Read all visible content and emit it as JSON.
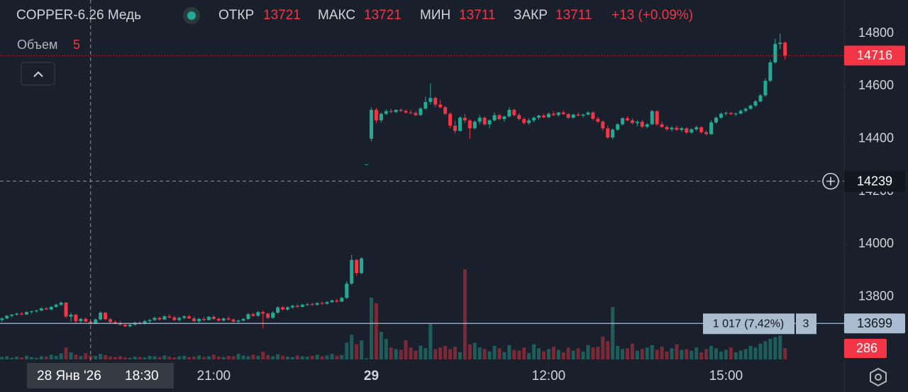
{
  "chart_data": {
    "type": "candlestick",
    "symbol": "COPPER-6.26 Медь",
    "legend": {
      "open_label": "ОТКР",
      "open": 13721,
      "high_label": "МАКС",
      "high": 13721,
      "low_label": "МИН",
      "low": 13711,
      "close_label": "ЗАКР",
      "close": 13711,
      "change": "+13 (+0.09%)",
      "volume_label": "Объем",
      "volume": 5
    },
    "up_color": "#22ab94",
    "down_color": "#f23645",
    "ylim": [
      13549,
      14927
    ],
    "yticks": [
      13800,
      14000,
      14200,
      14400,
      14600,
      14800
    ],
    "xlim": [
      -0.4,
      171
    ],
    "xticks": [
      {
        "value": 43,
        "label": "21:00"
      },
      {
        "value": 75,
        "label": "29"
      },
      {
        "value": 111,
        "label": "12:00"
      },
      {
        "value": 147,
        "label": "15:00"
      }
    ],
    "volume_ylim": [
      0,
      9075
    ],
    "grid": false,
    "ohlc": [
      [
        13712,
        13722,
        13705,
        13718
      ],
      [
        13718,
        13730,
        13715,
        13728
      ],
      [
        13728,
        13735,
        13722,
        13732
      ],
      [
        13732,
        13740,
        13728,
        13736
      ],
      [
        13736,
        13742,
        13730,
        13733
      ],
      [
        13733,
        13745,
        13731,
        13742
      ],
      [
        13742,
        13748,
        13736,
        13745
      ],
      [
        13745,
        13752,
        13740,
        13748
      ],
      [
        13748,
        13760,
        13745,
        13756
      ],
      [
        13756,
        13762,
        13750,
        13752
      ],
      [
        13752,
        13765,
        13748,
        13762
      ],
      [
        13762,
        13775,
        13758,
        13770
      ],
      [
        13770,
        13782,
        13765,
        13778
      ],
      [
        13778,
        13780,
        13720,
        13725
      ],
      [
        13725,
        13740,
        13705,
        13732
      ],
      [
        13732,
        13736,
        13700,
        13708
      ],
      [
        13708,
        13720,
        13700,
        13716
      ],
      [
        13716,
        13722,
        13704,
        13706
      ],
      [
        13706,
        13712,
        13695,
        13700
      ],
      [
        13700,
        13718,
        13696,
        13714
      ],
      [
        13714,
        13745,
        13710,
        13740
      ],
      [
        13740,
        13742,
        13712,
        13715
      ],
      [
        13715,
        13720,
        13700,
        13704
      ],
      [
        13704,
        13710,
        13696,
        13700
      ],
      [
        13700,
        13708,
        13690,
        13694
      ],
      [
        13694,
        13700,
        13685,
        13688
      ],
      [
        13688,
        13698,
        13684,
        13694
      ],
      [
        13694,
        13706,
        13690,
        13702
      ],
      [
        13702,
        13708,
        13694,
        13698
      ],
      [
        13698,
        13712,
        13695,
        13708
      ],
      [
        13708,
        13716,
        13700,
        13712
      ],
      [
        13712,
        13725,
        13708,
        13720
      ],
      [
        13720,
        13724,
        13710,
        13714
      ],
      [
        13714,
        13730,
        13712,
        13726
      ],
      [
        13726,
        13734,
        13718,
        13722
      ],
      [
        13722,
        13728,
        13708,
        13712
      ],
      [
        13712,
        13724,
        13706,
        13720
      ],
      [
        13720,
        13730,
        13714,
        13726
      ],
      [
        13726,
        13732,
        13716,
        13718
      ],
      [
        13718,
        13726,
        13704,
        13708
      ],
      [
        13708,
        13720,
        13702,
        13716
      ],
      [
        13716,
        13724,
        13708,
        13712
      ],
      [
        13712,
        13728,
        13710,
        13724
      ],
      [
        13724,
        13730,
        13712,
        13716
      ],
      [
        13716,
        13722,
        13706,
        13710
      ],
      [
        13710,
        13722,
        13706,
        13718
      ],
      [
        13718,
        13726,
        13710,
        13714
      ],
      [
        13714,
        13718,
        13702,
        13706
      ],
      [
        13706,
        13714,
        13700,
        13710
      ],
      [
        13710,
        13720,
        13706,
        13716
      ],
      [
        13716,
        13738,
        13712,
        13734
      ],
      [
        13734,
        13740,
        13724,
        13728
      ],
      [
        13728,
        13746,
        13724,
        13742
      ],
      [
        13742,
        13748,
        13680,
        13736
      ],
      [
        13736,
        13740,
        13716,
        13720
      ],
      [
        13720,
        13745,
        13718,
        13740
      ],
      [
        13740,
        13765,
        13736,
        13760
      ],
      [
        13760,
        13766,
        13748,
        13752
      ],
      [
        13752,
        13764,
        13748,
        13760
      ],
      [
        13760,
        13770,
        13754,
        13766
      ],
      [
        13766,
        13772,
        13758,
        13762
      ],
      [
        13762,
        13774,
        13760,
        13770
      ],
      [
        13770,
        13776,
        13764,
        13772
      ],
      [
        13772,
        13778,
        13766,
        13770
      ],
      [
        13770,
        13780,
        13766,
        13776
      ],
      [
        13776,
        13782,
        13770,
        13774
      ],
      [
        13774,
        13784,
        13770,
        13780
      ],
      [
        13780,
        13790,
        13776,
        13786
      ],
      [
        13786,
        13792,
        13778,
        13782
      ],
      [
        13782,
        13800,
        13780,
        13796
      ],
      [
        13796,
        13860,
        13792,
        13850
      ],
      [
        13850,
        13960,
        13846,
        13940
      ],
      [
        13940,
        13944,
        13880,
        13890
      ],
      [
        13890,
        13950,
        13886,
        13946
      ],
      [
        14303,
        14303,
        14303,
        14303
      ],
      [
        14400,
        14520,
        14390,
        14510
      ],
      [
        14510,
        14518,
        14460,
        14470
      ],
      [
        14470,
        14500,
        14462,
        14495
      ],
      [
        14495,
        14512,
        14490,
        14505
      ],
      [
        14505,
        14514,
        14498,
        14502
      ],
      [
        14502,
        14512,
        14498,
        14510
      ],
      [
        14510,
        14516,
        14502,
        14506
      ],
      [
        14506,
        14512,
        14495,
        14500
      ],
      [
        14500,
        14510,
        14494,
        14498
      ],
      [
        14498,
        14505,
        14485,
        14490
      ],
      [
        14490,
        14520,
        14488,
        14515
      ],
      [
        14515,
        14560,
        14510,
        14540
      ],
      [
        14540,
        14610,
        14530,
        14555
      ],
      [
        14555,
        14560,
        14520,
        14530
      ],
      [
        14530,
        14548,
        14515,
        14520
      ],
      [
        14520,
        14525,
        14490,
        14495
      ],
      [
        14495,
        14500,
        14440,
        14450
      ],
      [
        14450,
        14470,
        14420,
        14430
      ],
      [
        14430,
        14485,
        14428,
        14480
      ],
      [
        14480,
        14495,
        14460,
        14470
      ],
      [
        14470,
        14475,
        14400,
        14440
      ],
      [
        14440,
        14470,
        14435,
        14465
      ],
      [
        14465,
        14490,
        14455,
        14480
      ],
      [
        14480,
        14485,
        14450,
        14455
      ],
      [
        14455,
        14475,
        14440,
        14470
      ],
      [
        14470,
        14500,
        14465,
        14490
      ],
      [
        14490,
        14495,
        14470,
        14475
      ],
      [
        14475,
        14488,
        14465,
        14485
      ],
      [
        14485,
        14520,
        14480,
        14510
      ],
      [
        14510,
        14515,
        14485,
        14490
      ],
      [
        14490,
        14498,
        14470,
        14475
      ],
      [
        14475,
        14482,
        14455,
        14460
      ],
      [
        14460,
        14478,
        14452,
        14470
      ],
      [
        14470,
        14485,
        14462,
        14480
      ],
      [
        14480,
        14492,
        14472,
        14488
      ],
      [
        14488,
        14495,
        14478,
        14482
      ],
      [
        14482,
        14500,
        14478,
        14495
      ],
      [
        14495,
        14505,
        14486,
        14490
      ],
      [
        14490,
        14502,
        14484,
        14500
      ],
      [
        14500,
        14508,
        14490,
        14494
      ],
      [
        14494,
        14498,
        14475,
        14480
      ],
      [
        14480,
        14496,
        14476,
        14492
      ],
      [
        14492,
        14500,
        14485,
        14488
      ],
      [
        14488,
        14495,
        14480,
        14492
      ],
      [
        14492,
        14506,
        14488,
        14500
      ],
      [
        14500,
        14504,
        14470,
        14476
      ],
      [
        14476,
        14484,
        14460,
        14465
      ],
      [
        14465,
        14470,
        14430,
        14440
      ],
      [
        14440,
        14450,
        14400,
        14405
      ],
      [
        14405,
        14440,
        14398,
        14435
      ],
      [
        14435,
        14460,
        14430,
        14455
      ],
      [
        14455,
        14482,
        14450,
        14478
      ],
      [
        14478,
        14486,
        14466,
        14470
      ],
      [
        14470,
        14478,
        14455,
        14460
      ],
      [
        14460,
        14470,
        14448,
        14465
      ],
      [
        14465,
        14472,
        14440,
        14446
      ],
      [
        14446,
        14460,
        14440,
        14455
      ],
      [
        14455,
        14510,
        14452,
        14505
      ],
      [
        14505,
        14508,
        14450,
        14455
      ],
      [
        14455,
        14465,
        14440,
        14445
      ],
      [
        14445,
        14452,
        14430,
        14436
      ],
      [
        14436,
        14448,
        14428,
        14442
      ],
      [
        14442,
        14450,
        14430,
        14434
      ],
      [
        14434,
        14446,
        14426,
        14440
      ],
      [
        14440,
        14444,
        14418,
        14424
      ],
      [
        14424,
        14440,
        14420,
        14436
      ],
      [
        14436,
        14450,
        14430,
        14444
      ],
      [
        14444,
        14448,
        14420,
        14425
      ],
      [
        14425,
        14432,
        14412,
        14418
      ],
      [
        14418,
        14470,
        14415,
        14462
      ],
      [
        14462,
        14485,
        14458,
        14480
      ],
      [
        14480,
        14500,
        14476,
        14495
      ],
      [
        14495,
        14504,
        14488,
        14498
      ],
      [
        14498,
        14502,
        14490,
        14494
      ],
      [
        14494,
        14500,
        14486,
        14496
      ],
      [
        14496,
        14512,
        14492,
        14506
      ],
      [
        14506,
        14518,
        14500,
        14514
      ],
      [
        14514,
        14530,
        14510,
        14526
      ],
      [
        14526,
        14548,
        14520,
        14542
      ],
      [
        14542,
        14570,
        14538,
        14565
      ],
      [
        14565,
        14630,
        14560,
        14620
      ],
      [
        14620,
        14700,
        14615,
        14690
      ],
      [
        14690,
        14780,
        14685,
        14760
      ],
      [
        14760,
        14800,
        14740,
        14765
      ],
      [
        14765,
        14770,
        14700,
        14716
      ]
    ],
    "volume": [
      60,
      80,
      40,
      70,
      50,
      90,
      60,
      40,
      80,
      70,
      120,
      90,
      150,
      300,
      180,
      120,
      80,
      160,
      100,
      90,
      140,
      110,
      70,
      60,
      80,
      50,
      40,
      70,
      60,
      50,
      90,
      80,
      60,
      100,
      70,
      50,
      80,
      90,
      60,
      70,
      100,
      60,
      80,
      120,
      70,
      60,
      90,
      80,
      140,
      100,
      80,
      120,
      90,
      200,
      110,
      80,
      130,
      90,
      70,
      60,
      100,
      80,
      70,
      90,
      120,
      80,
      100,
      140,
      90,
      110,
      420,
      620,
      380,
      480,
      30,
      1560,
      1420,
      700,
      520,
      300,
      260,
      240,
      480,
      300,
      220,
      350,
      280,
      900,
      260,
      300,
      340,
      260,
      320,
      180,
      2270,
      380,
      420,
      300,
      260,
      200,
      340,
      280,
      180,
      360,
      240,
      220,
      300,
      160,
      380,
      280,
      200,
      260,
      320,
      240,
      180,
      300,
      220,
      280,
      200,
      360,
      300,
      320,
      580,
      460,
      1320,
      340,
      260,
      280,
      400,
      220,
      260,
      300,
      360,
      240,
      320,
      200,
      280,
      380,
      240,
      260,
      220,
      300,
      180,
      260,
      340,
      280,
      200,
      240,
      300,
      180,
      220,
      260,
      340,
      300,
      400,
      460,
      520,
      560,
      600,
      286
    ],
    "last_price": 14716,
    "last_volume": 286,
    "crosshair": {
      "x": 18,
      "price": 14239,
      "date_label": "28 Янв '26",
      "time_label": "18:30"
    },
    "measure": {
      "price": 13699,
      "label": "1 017 (7,42%)",
      "count": 3
    }
  }
}
